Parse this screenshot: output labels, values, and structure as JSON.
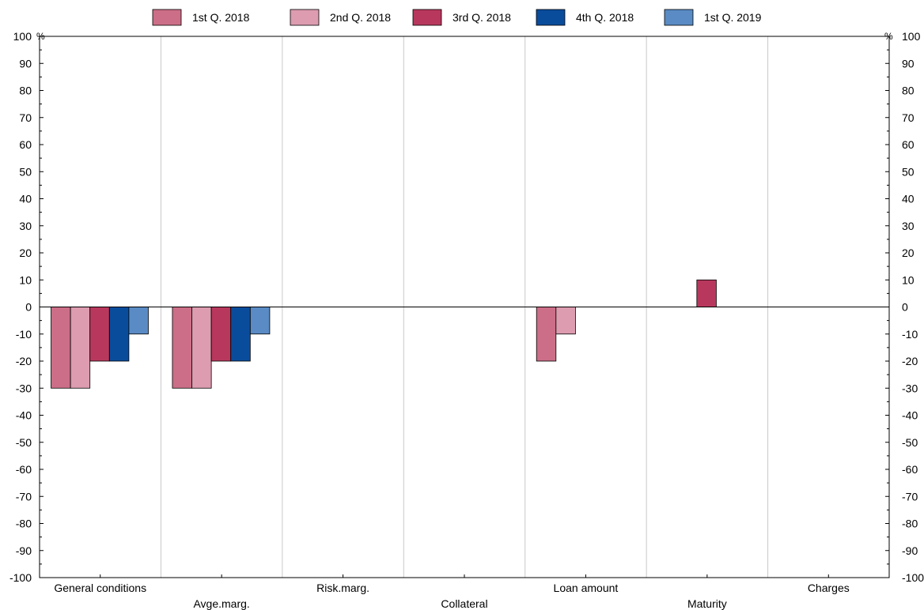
{
  "chart_data": {
    "type": "bar",
    "categories": [
      "General conditions",
      "Avge.marg.",
      "Risk.marg.",
      "Collateral",
      "Loan amount",
      "Maturity",
      "Charges"
    ],
    "series": [
      {
        "name": "1st Q. 2018",
        "color": "#cc6e87",
        "values": [
          -30,
          -30,
          0,
          0,
          -20,
          0,
          0
        ]
      },
      {
        "name": "2nd Q. 2018",
        "color": "#dd9cb0",
        "values": [
          -30,
          -30,
          0,
          0,
          -10,
          0,
          0
        ]
      },
      {
        "name": "3rd Q. 2018",
        "color": "#b8385d",
        "values": [
          -20,
          -20,
          0,
          0,
          0,
          10,
          0
        ]
      },
      {
        "name": "4th Q. 2018",
        "color": "#0a4c9c",
        "values": [
          -20,
          -20,
          0,
          0,
          0,
          0,
          0
        ]
      },
      {
        "name": "1st Q. 2019",
        "color": "#5a8bc4",
        "values": [
          -10,
          -10,
          0,
          0,
          0,
          0,
          0
        ]
      }
    ],
    "ylim": [
      -100,
      100
    ],
    "yticks": [
      100,
      90,
      80,
      70,
      60,
      50,
      40,
      30,
      20,
      10,
      0,
      -10,
      -20,
      -30,
      -40,
      -50,
      -60,
      -70,
      -80,
      -90,
      -100
    ],
    "y_unit_left": "%",
    "y_unit_right": "%",
    "legend_position": "top",
    "grid": "vertical separators between categories",
    "xlabel": "",
    "ylabel": ""
  }
}
